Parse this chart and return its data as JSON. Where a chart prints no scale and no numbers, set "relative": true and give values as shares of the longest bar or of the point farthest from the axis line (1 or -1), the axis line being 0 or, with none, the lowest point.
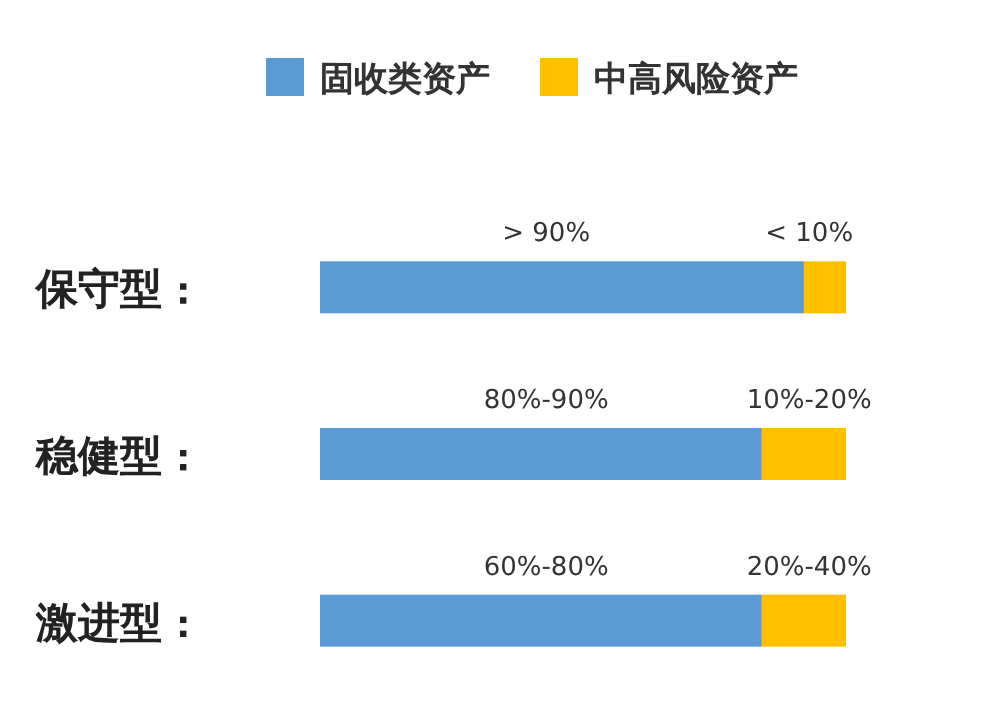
{
  "chart_data": {
    "type": "bar",
    "orientation": "horizontal",
    "stacked": true,
    "relative": true,
    "legend": "top",
    "categories": [
      "保守型",
      "稳健型",
      "激进型"
    ],
    "series": [
      {
        "name": "固收类资产",
        "color": "#5b9bd5",
        "values": [
          0.92,
          0.84,
          0.84
        ]
      },
      {
        "name": "中高风险资产",
        "color": "#ffc000",
        "values": [
          0.08,
          0.16,
          0.16
        ]
      }
    ],
    "annotations": [
      "> 90%",
      "< 10%",
      "80%-90%",
      "10%-20%",
      "60%-80%",
      "20%-40%"
    ]
  }
}
